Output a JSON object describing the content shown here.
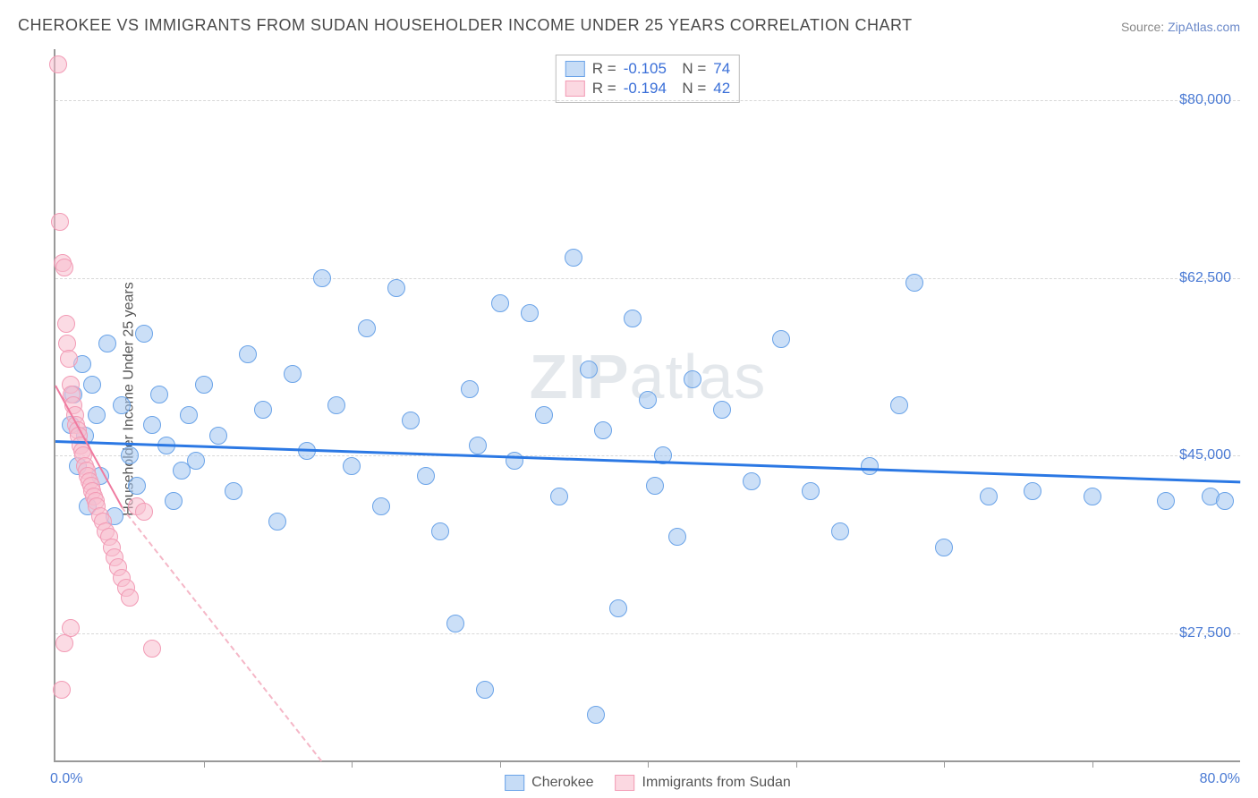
{
  "title": "CHEROKEE VS IMMIGRANTS FROM SUDAN HOUSEHOLDER INCOME UNDER 25 YEARS CORRELATION CHART",
  "source_prefix": "Source: ",
  "source_link": "ZipAtlas.com",
  "ylabel": "Householder Income Under 25 years",
  "watermark": "ZIPatlas",
  "chart": {
    "type": "scatter",
    "xlim": [
      0,
      80
    ],
    "ylim": [
      15000,
      85000
    ],
    "x_axis_min_label": "0.0%",
    "x_axis_max_label": "80.0%",
    "y_gridlines": [
      27500,
      45000,
      62500,
      80000
    ],
    "y_tick_labels": [
      "$27,500",
      "$45,000",
      "$62,500",
      "$80,000"
    ],
    "x_ticks": [
      10,
      20,
      30,
      40,
      50,
      60,
      70
    ],
    "background_color": "#ffffff",
    "grid_color": "#d8d8d8",
    "axis_color": "#999999",
    "tick_label_color": "#4a7ad4",
    "point_radius": 10,
    "series": [
      {
        "name": "Cherokee",
        "color_fill": "rgba(160,196,240,0.55)",
        "color_stroke": "#6aa3e8",
        "R": "-0.105",
        "N": "74",
        "trend": {
          "x1": 0,
          "y1": 46500,
          "x2": 80,
          "y2": 42500,
          "color": "#2b78e4",
          "width": 3,
          "dash": false
        },
        "points": [
          [
            1.0,
            48000
          ],
          [
            1.2,
            51000
          ],
          [
            1.5,
            44000
          ],
          [
            1.8,
            54000
          ],
          [
            2.0,
            47000
          ],
          [
            2.2,
            40000
          ],
          [
            2.5,
            52000
          ],
          [
            2.8,
            49000
          ],
          [
            3.0,
            43000
          ],
          [
            3.5,
            56000
          ],
          [
            4.0,
            39000
          ],
          [
            4.5,
            50000
          ],
          [
            5.0,
            45000
          ],
          [
            5.5,
            42000
          ],
          [
            6.0,
            57000
          ],
          [
            6.5,
            48000
          ],
          [
            7.0,
            51000
          ],
          [
            7.5,
            46000
          ],
          [
            8.0,
            40500
          ],
          [
            8.5,
            43500
          ],
          [
            9.0,
            49000
          ],
          [
            9.5,
            44500
          ],
          [
            10.0,
            52000
          ],
          [
            11.0,
            47000
          ],
          [
            12.0,
            41500
          ],
          [
            13.0,
            55000
          ],
          [
            14.0,
            49500
          ],
          [
            15.0,
            38500
          ],
          [
            16.0,
            53000
          ],
          [
            17.0,
            45500
          ],
          [
            18.0,
            62500
          ],
          [
            19.0,
            50000
          ],
          [
            20.0,
            44000
          ],
          [
            21.0,
            57500
          ],
          [
            22.0,
            40000
          ],
          [
            23.0,
            61500
          ],
          [
            24.0,
            48500
          ],
          [
            25.0,
            43000
          ],
          [
            26.0,
            37500
          ],
          [
            27.0,
            28500
          ],
          [
            28.0,
            51500
          ],
          [
            28.5,
            46000
          ],
          [
            29.0,
            22000
          ],
          [
            30.0,
            60000
          ],
          [
            31.0,
            44500
          ],
          [
            32.0,
            59000
          ],
          [
            33.0,
            49000
          ],
          [
            34.0,
            41000
          ],
          [
            35.0,
            64500
          ],
          [
            36.0,
            53500
          ],
          [
            36.5,
            19500
          ],
          [
            37.0,
            47500
          ],
          [
            38.0,
            30000
          ],
          [
            39.0,
            58500
          ],
          [
            40.0,
            50500
          ],
          [
            40.5,
            42000
          ],
          [
            41.0,
            45000
          ],
          [
            42.0,
            37000
          ],
          [
            43.0,
            52500
          ],
          [
            45.0,
            49500
          ],
          [
            47.0,
            42500
          ],
          [
            49.0,
            56500
          ],
          [
            51.0,
            41500
          ],
          [
            53.0,
            37500
          ],
          [
            55.0,
            44000
          ],
          [
            57.0,
            50000
          ],
          [
            58.0,
            62000
          ],
          [
            60.0,
            36000
          ],
          [
            63.0,
            41000
          ],
          [
            66.0,
            41500
          ],
          [
            70.0,
            41000
          ],
          [
            75.0,
            40500
          ],
          [
            78.0,
            41000
          ],
          [
            79.0,
            40500
          ]
        ]
      },
      {
        "name": "Immigrants from Sudan",
        "color_fill": "rgba(248,190,205,0.55)",
        "color_stroke": "#f29bb5",
        "R": "-0.194",
        "N": "42",
        "trend_solid": {
          "x1": 0,
          "y1": 52000,
          "x2": 4.5,
          "y2": 40000,
          "color": "#ef7ba0",
          "width": 2.5
        },
        "trend_dash": {
          "x1": 4.5,
          "y1": 40000,
          "x2": 18,
          "y2": 15000,
          "color": "#f5b7c7",
          "width": 2
        },
        "points": [
          [
            0.2,
            83500
          ],
          [
            0.3,
            68000
          ],
          [
            0.5,
            64000
          ],
          [
            0.6,
            63500
          ],
          [
            0.7,
            58000
          ],
          [
            0.8,
            56000
          ],
          [
            0.9,
            54500
          ],
          [
            1.0,
            52000
          ],
          [
            1.1,
            51000
          ],
          [
            1.2,
            50000
          ],
          [
            1.3,
            49000
          ],
          [
            1.4,
            48000
          ],
          [
            1.5,
            47500
          ],
          [
            1.6,
            47000
          ],
          [
            1.7,
            46000
          ],
          [
            1.8,
            45500
          ],
          [
            1.9,
            45000
          ],
          [
            2.0,
            44000
          ],
          [
            2.1,
            43500
          ],
          [
            2.2,
            43000
          ],
          [
            2.3,
            42500
          ],
          [
            2.4,
            42000
          ],
          [
            2.5,
            41500
          ],
          [
            2.6,
            41000
          ],
          [
            2.7,
            40500
          ],
          [
            2.8,
            40000
          ],
          [
            3.0,
            39000
          ],
          [
            3.2,
            38500
          ],
          [
            3.4,
            37500
          ],
          [
            3.6,
            37000
          ],
          [
            3.8,
            36000
          ],
          [
            4.0,
            35000
          ],
          [
            4.2,
            34000
          ],
          [
            4.5,
            33000
          ],
          [
            4.8,
            32000
          ],
          [
            5.0,
            31000
          ],
          [
            1.0,
            28000
          ],
          [
            0.4,
            22000
          ],
          [
            0.6,
            26500
          ],
          [
            5.5,
            40000
          ],
          [
            6.0,
            39500
          ],
          [
            6.5,
            26000
          ]
        ]
      }
    ],
    "legend_bottom": [
      {
        "swatch": "blue",
        "label": "Cherokee"
      },
      {
        "swatch": "pink",
        "label": "Immigrants from Sudan"
      }
    ]
  }
}
